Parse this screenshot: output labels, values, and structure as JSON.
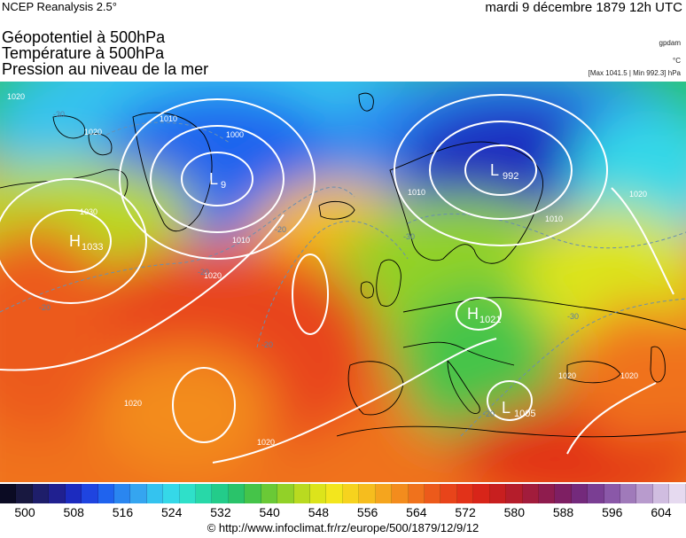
{
  "header": {
    "source": "NCEP Reanalysis 2.5°",
    "date": "mardi 9 décembre 1879 12h UTC"
  },
  "titles": {
    "line1": "Géopotentiel à 500hPa",
    "line2": "Température à 500hPa",
    "line3": "Pression au niveau de la mer"
  },
  "units": {
    "geopotential": "gpdam",
    "temperature": "°C",
    "pressure_range": "[Max 1041.5 | Min 992.3] hPa"
  },
  "pressure_centers": [
    {
      "type": "H",
      "value": "1033"
    },
    {
      "type": "L",
      "value": "992"
    },
    {
      "type": "L",
      "value": "9"
    },
    {
      "type": "H",
      "value": "1021"
    },
    {
      "type": "L",
      "value": "1005"
    }
  ],
  "isobar_labels": [
    "1030",
    "1010",
    "1000",
    "1010",
    "1020",
    "1020",
    "1010",
    "1020",
    "1010",
    "1020",
    "1020",
    "1020",
    "1020",
    "1020"
  ],
  "temperature_labels": [
    "-20",
    "-20",
    "-20",
    "-30",
    "-30",
    "-20",
    "-30",
    "-20"
  ],
  "color_scale": {
    "ticks": [
      "500",
      "508",
      "516",
      "524",
      "532",
      "540",
      "548",
      "556",
      "564",
      "572",
      "580",
      "588",
      "596",
      "604"
    ],
    "colors": [
      "#0b0b23",
      "#181840",
      "#1e1e6a",
      "#202090",
      "#1c2bbf",
      "#1f44e0",
      "#1f63ee",
      "#2a86f0",
      "#35a5f0",
      "#34c3ef",
      "#35d8e8",
      "#2fe0c9",
      "#28d8a8",
      "#23cc8a",
      "#2ac36a",
      "#45c449",
      "#6ac936",
      "#92d128",
      "#b9da20",
      "#dce41b",
      "#f3e61d",
      "#f6d31e",
      "#f6bd1e",
      "#f5a51e",
      "#f38c1d",
      "#f0721c",
      "#ec5a1b",
      "#e8441a",
      "#e23219",
      "#d82519",
      "#c81f1f",
      "#b51d2b",
      "#a21c3c",
      "#8f1c4e",
      "#7e1f63",
      "#742a7c",
      "#7a3e93",
      "#8a58a8",
      "#a07aba",
      "#b89bcd",
      "#d0bde0",
      "#e6daf0"
    ]
  },
  "credit": "© http://www.infoclimat.fr/rz/europe/500/1879/12/9/12"
}
